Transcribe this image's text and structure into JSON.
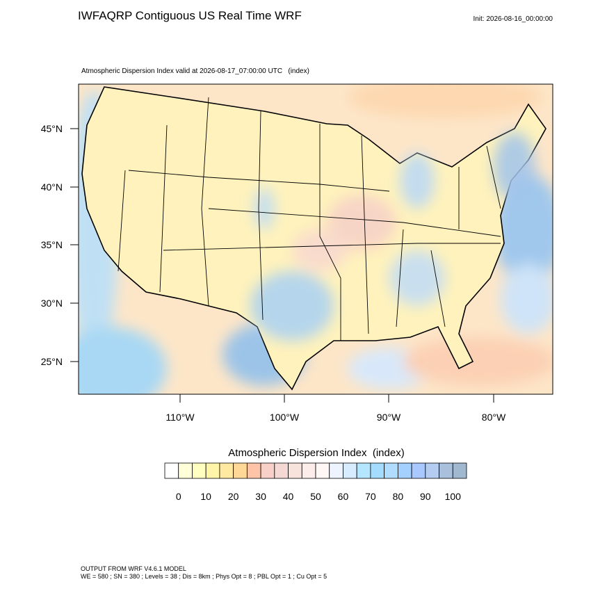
{
  "header": {
    "title": "IWFAQRP Contiguous US Real Time WRF",
    "init": "Init: 2026-08-16_00:00:00"
  },
  "map": {
    "subtitle": "Atmospheric Dispersion Index valid at 2026-08-17_07:00:00 UTC   (index)",
    "lat_labels": [
      "45°N",
      "40°N",
      "35°N",
      "30°N",
      "25°N"
    ],
    "lon_labels": [
      "110°W",
      "100°W",
      "90°W",
      "80°W"
    ]
  },
  "colorbar": {
    "title": "Atmospheric Dispersion Index  (index)",
    "labels": [
      0,
      10,
      20,
      30,
      40,
      50,
      60,
      70,
      80,
      90,
      100
    ],
    "colors": [
      "#ffffff",
      "#ffffd8",
      "#ffffc0",
      "#fff4a8",
      "#ffe8a0",
      "#ffd898",
      "#ffc4a8",
      "#f8d0c8",
      "#f4d8d4",
      "#f8e2dc",
      "#fcecea",
      "#fff6f6",
      "#eef4ff",
      "#d8ecff",
      "#b4e6ff",
      "#a4dcff",
      "#b0dcff",
      "#a4d0ff",
      "#a8c8ff",
      "#b4ccf0",
      "#a8c0dc",
      "#a0b8d0"
    ]
  },
  "footer": {
    "lines": [
      "OUTPUT FROM WRF V4.6.1 MODEL",
      "WE = 580 ; SN = 380 ; Levels = 38 ; Dis = 8km ; Phys Opt = 8 ; PBL Opt = 1 ; Cu Opt = 5"
    ]
  }
}
